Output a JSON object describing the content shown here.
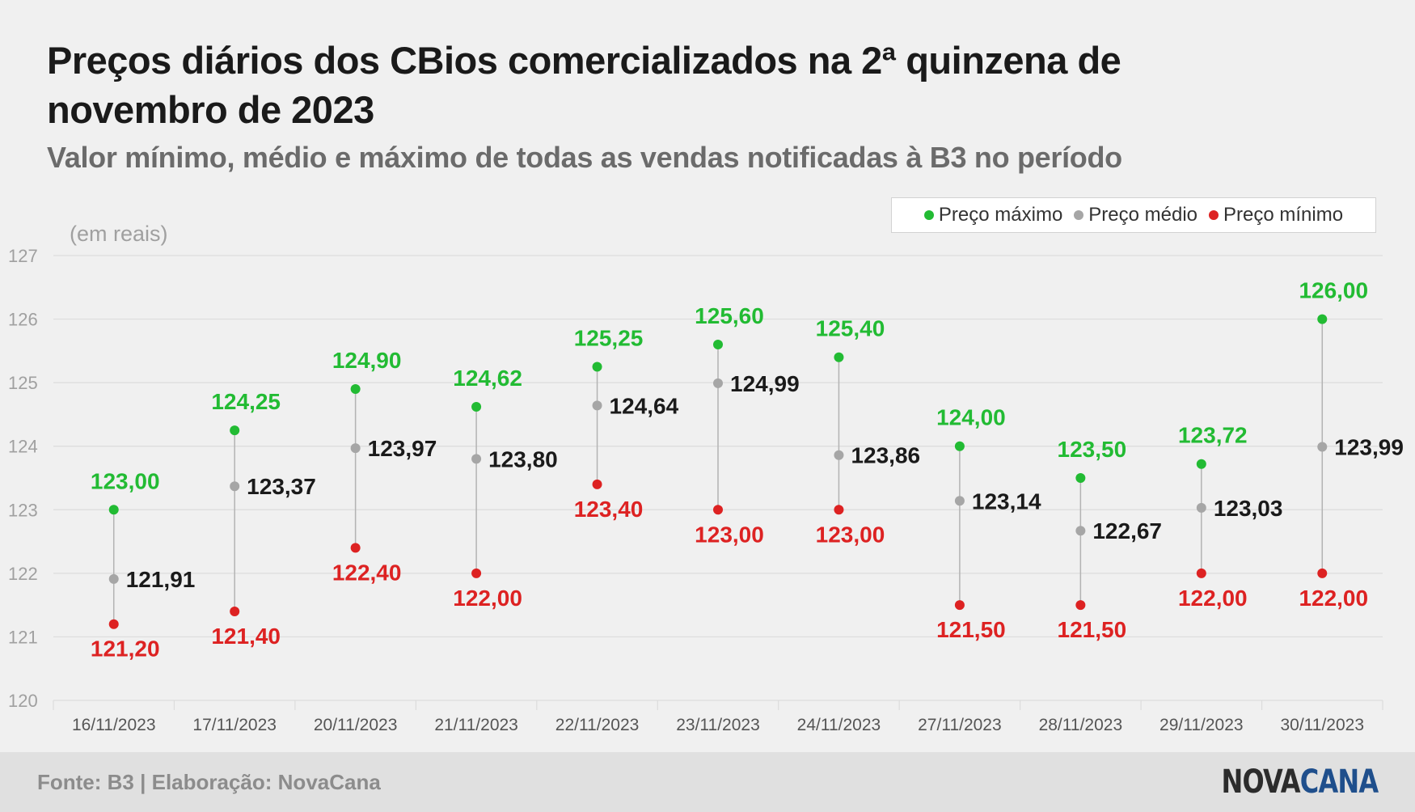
{
  "title": "Preços diários dos CBios comercializados na 2ª quinzena de novembro de 2023",
  "subtitle": "Valor mínimo, médio e máximo de todas as vendas notificadas à B3 no período",
  "unit_label": "(em reais)",
  "legend": [
    {
      "label": "Preço máximo",
      "color": "#22bb33"
    },
    {
      "label": "Preço médio",
      "color": "#a6a6a6"
    },
    {
      "label": "Preço mínimo",
      "color": "#dd2222"
    }
  ],
  "footer": {
    "source": "Fonte: B3 | Elaboração: NovaCana",
    "brand_part1": "NOVA",
    "brand_part2": "CANA"
  },
  "colors": {
    "max": "#22bb33",
    "avg_dot": "#a6a6a6",
    "avg_label": "#1a1a1a",
    "min": "#dd2222",
    "axis_text": "#a0a0a0",
    "grid": "#dcdcdc"
  },
  "chart_data": {
    "type": "scatter",
    "categories": [
      "16/11/2023",
      "17/11/2023",
      "20/11/2023",
      "21/11/2023",
      "22/11/2023",
      "23/11/2023",
      "24/11/2023",
      "27/11/2023",
      "28/11/2023",
      "29/11/2023",
      "30/11/2023"
    ],
    "series": [
      {
        "name": "Preço máximo",
        "values": [
          123.0,
          124.25,
          124.9,
          124.62,
          125.25,
          125.6,
          125.4,
          124.0,
          123.5,
          123.72,
          126.0
        ],
        "labels": [
          "123,00",
          "124,25",
          "124,90",
          "124,62",
          "125,25",
          "125,60",
          "125,40",
          "124,00",
          "123,50",
          "123,72",
          "126,00"
        ]
      },
      {
        "name": "Preço médio",
        "values": [
          121.91,
          123.37,
          123.97,
          123.8,
          124.64,
          124.99,
          123.86,
          123.14,
          122.67,
          123.03,
          123.99
        ],
        "labels": [
          "121,91",
          "123,37",
          "123,97",
          "123,80",
          "124,64",
          "124,99",
          "123,86",
          "123,14",
          "122,67",
          "123,03",
          "123,99"
        ]
      },
      {
        "name": "Preço mínimo",
        "values": [
          121.2,
          121.4,
          122.4,
          122.0,
          123.4,
          123.0,
          123.0,
          121.5,
          121.5,
          122.0,
          122.0
        ],
        "labels": [
          "121,20",
          "121,40",
          "122,40",
          "122,00",
          "123,40",
          "123,00",
          "123,00",
          "121,50",
          "121,50",
          "122,00",
          "122,00"
        ]
      }
    ],
    "ylim": [
      120,
      127
    ],
    "yticks": [
      120,
      121,
      122,
      123,
      124,
      125,
      126,
      127
    ],
    "grid": true,
    "legend_position": "top-right"
  }
}
